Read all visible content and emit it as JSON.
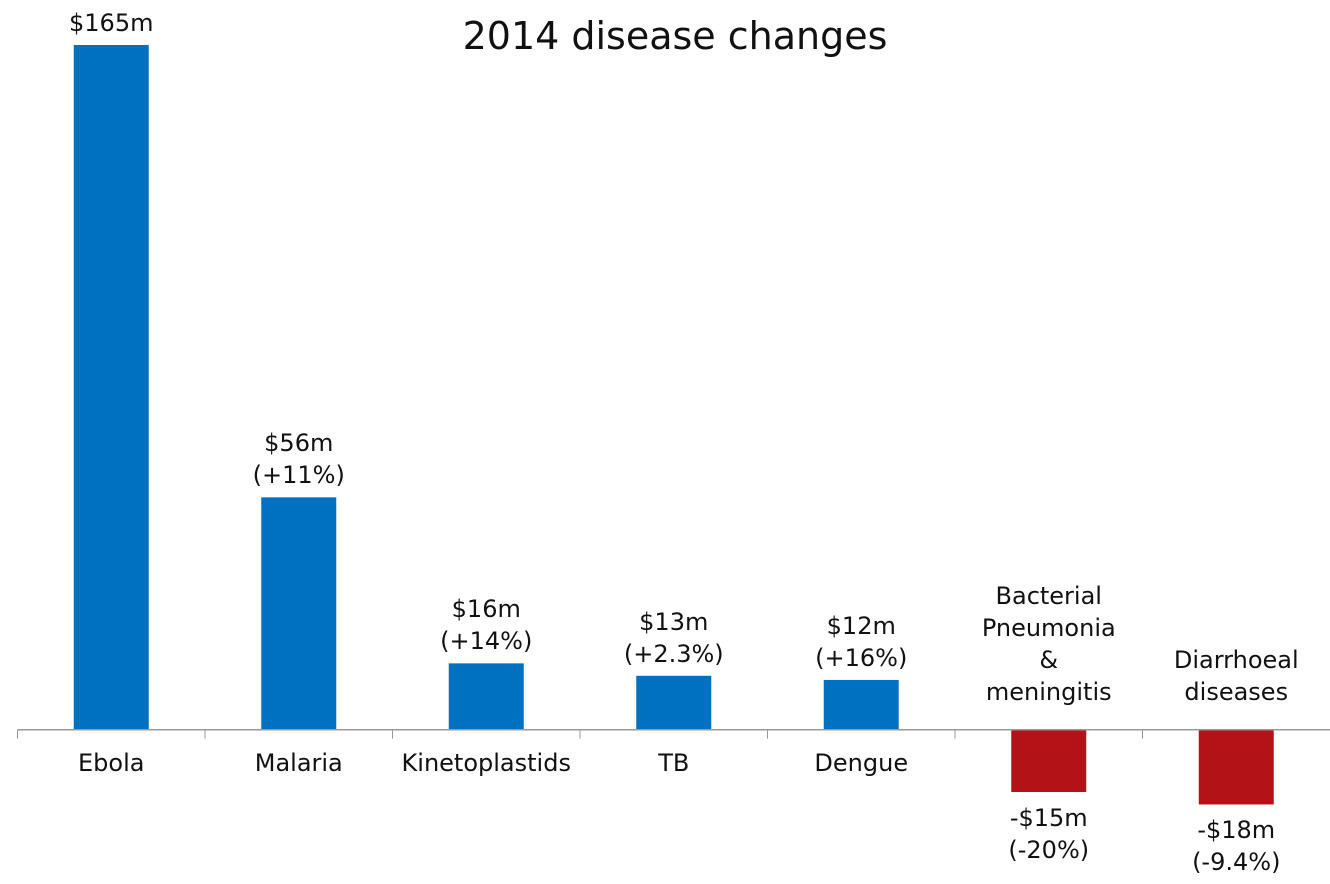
{
  "chart_data": {
    "type": "bar",
    "title": "2014 disease changes",
    "categories": [
      "Ebola",
      "Malaria",
      "Kinetoplastids",
      "TB",
      "Dengue",
      "Bacterial Pneumonia & meningitis",
      "Diarrhoeal diseases"
    ],
    "values": [
      165,
      56,
      16,
      13,
      12,
      -15,
      -18
    ],
    "value_labels": [
      "$165m",
      "$56m (+11%)",
      "$16m (+14%)",
      "$13m (+2.3%)",
      "$12m (+16%)",
      "-$15m (-20%)",
      "-$18m (-9.4%)"
    ],
    "color": "#0070c0",
    "negative_color": "#b31217",
    "ylim": [
      -35,
      165
    ]
  }
}
